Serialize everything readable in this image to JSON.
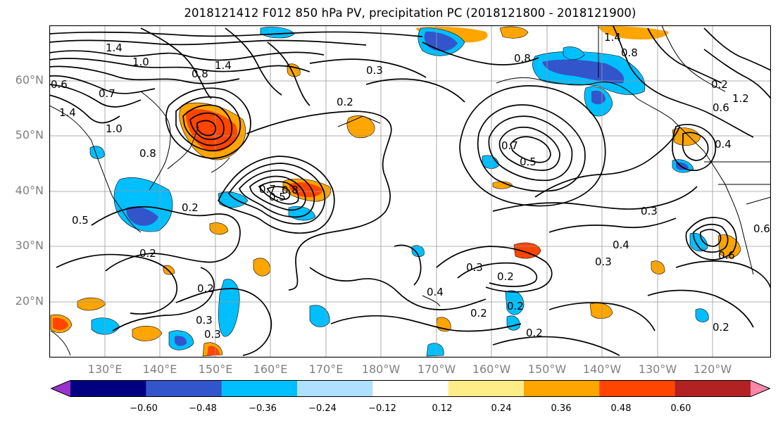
{
  "title": "2018121412 F012 850 hPa PV, precipitation PC (2018121800 - 2018121900)",
  "lat_labels": [
    "60°N",
    "50°N",
    "40°N",
    "30°N",
    "20°N"
  ],
  "lon_labels": [
    "130°E",
    "140°E",
    "150°E",
    "160°E",
    "170°E",
    "180°W",
    "170°W",
    "160°W",
    "150°W",
    "140°W",
    "130°W",
    "120°W"
  ],
  "contour_labels": [
    "1.4",
    "1.0",
    "0.8",
    "1.4",
    "0.3",
    "0.2",
    "0.6",
    "0.7",
    "1.4",
    "1.0",
    "0.8",
    "0.5",
    "0.2",
    "0.2",
    "0.7",
    "0.8",
    "0.5",
    "0.3",
    "0.3",
    "0.4",
    "0.3",
    "0.2",
    "0.2",
    "0.3",
    "0.3",
    "0.4",
    "0.2",
    "0.2",
    "0.2",
    "0.8",
    "0.6",
    "0.4",
    "0.6",
    "0.2",
    "1.4",
    "0.8",
    "0.7",
    "0.6",
    "0.5",
    "0.2",
    "1.2"
  ],
  "colorbar": {
    "ticks": [
      "−0.60",
      "−0.48",
      "−0.36",
      "−0.24",
      "−0.12",
      "0.12",
      "0.24",
      "0.36",
      "0.48",
      "0.60"
    ],
    "colors": [
      "#9933cc",
      "#000080",
      "#3355cc",
      "#00bfff",
      "#b0e0ff",
      "#ffffff",
      "#ffee88",
      "#ffa500",
      "#ff4500",
      "#b22222",
      "#ff88aa"
    ]
  }
}
